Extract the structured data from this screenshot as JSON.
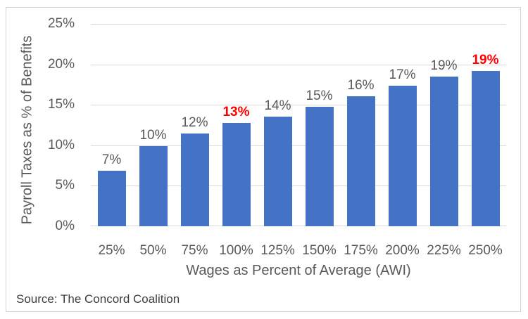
{
  "source": "Source: The Concord Coalition",
  "colors": {
    "bar": "#4472C4",
    "bar_label": "#595959",
    "highlight_label": "#FF0000",
    "gridline": "#D9D9D9",
    "axis_text": "#595959",
    "source_text": "#3F3F3F",
    "frame_border": "#D2D2D2"
  },
  "chart_data": {
    "type": "bar",
    "title": "",
    "xlabel": "Wages as Percent of Average (AWI)",
    "ylabel": "Payroll Taxes as % of Benefits",
    "categories": [
      "25%",
      "50%",
      "75%",
      "100%",
      "125%",
      "150%",
      "175%",
      "200%",
      "225%",
      "250%"
    ],
    "values": [
      6.9,
      9.9,
      11.5,
      12.8,
      13.5,
      14.8,
      16.1,
      17.4,
      18.5,
      19.2
    ],
    "labels": [
      "7%",
      "10%",
      "12%",
      "13%",
      "14%",
      "15%",
      "16%",
      "17%",
      "19%",
      "19%"
    ],
    "highlighted_indices": [
      3,
      9
    ],
    "ylim": [
      0,
      25
    ],
    "yticks": [
      "0%",
      "5%",
      "10%",
      "15%",
      "20%",
      "25%"
    ],
    "grid": true,
    "legend": "none"
  }
}
